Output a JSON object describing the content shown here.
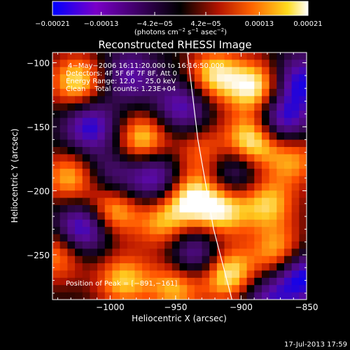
{
  "chart_data": {
    "type": "heatmap",
    "title": "Reconstructed RHESSI Image",
    "xlabel": "Heliocentric X (arcsec)",
    "ylabel": "Heliocentric Y (arcsec)",
    "xlim": [
      -1044,
      -850
    ],
    "ylim": [
      -285,
      -92
    ],
    "xticks": [
      -1000,
      -950,
      -900,
      -850
    ],
    "xtick_labels": [
      "−1000",
      "−950",
      "−900",
      "−850"
    ],
    "yticks": [
      -100,
      -150,
      -200,
      -250
    ],
    "ytick_labels": [
      "−100",
      "−150",
      "−200",
      "−250"
    ],
    "colorbar": {
      "range": [
        -0.00021,
        0.00021
      ],
      "ticks": [
        -0.00021,
        -0.00013,
        -4.2e-05,
        4.2e-05,
        0.00013,
        0.00021
      ],
      "tick_labels": [
        "−0.00021",
        "−0.00013",
        "−4.2e−05",
        "4.2e−05",
        "0.00013",
        "0.00021"
      ],
      "unit_parts": [
        "(photons cm",
        "−2",
        " s",
        "−1",
        " asec",
        "−2",
        ")"
      ],
      "colormap": [
        "#0000ff",
        "#7a00c8",
        "#000000",
        "#b41400",
        "#ff6400",
        "#ffdc1e",
        "#ffffff"
      ]
    },
    "annotations": [
      "4−May−2006 16:11:20.000 to 16:16:50.000",
      "Detectors: 4F 5F 6F 7F 8F, Att 0",
      "Energy Range: 12.0 − 25.0 keV",
      "Clean    Total counts: 1.23E+04"
    ],
    "peak_label": "Position of Peak = [−891,−161]",
    "peak": [
      -891,
      -161
    ],
    "limb_curve": [
      [
        -941,
        -92
      ],
      [
        -933,
        -160
      ],
      [
        -921,
        -230
      ],
      [
        -907,
        -285
      ]
    ],
    "grid_cols": 34,
    "grid_rows": 34,
    "hot_spots": [
      {
        "x": -1025,
        "y": -115,
        "v": 0.8
      },
      {
        "x": -1030,
        "y": -190,
        "v": 0.7
      },
      {
        "x": -1000,
        "y": -215,
        "v": 0.9
      },
      {
        "x": -975,
        "y": -160,
        "v": 0.8
      },
      {
        "x": -990,
        "y": -270,
        "v": 0.7
      },
      {
        "x": -960,
        "y": -225,
        "v": 0.6
      },
      {
        "x": -940,
        "y": -205,
        "v": 0.8
      },
      {
        "x": -950,
        "y": -275,
        "v": 0.7
      },
      {
        "x": -920,
        "y": -110,
        "v": 0.8
      },
      {
        "x": -930,
        "y": -170,
        "v": 0.5
      },
      {
        "x": -915,
        "y": -215,
        "v": 0.8
      },
      {
        "x": -910,
        "y": -265,
        "v": 0.9
      },
      {
        "x": -891,
        "y": -161,
        "v": 1.0
      },
      {
        "x": -888,
        "y": -120,
        "v": 0.9
      },
      {
        "x": -880,
        "y": -210,
        "v": 0.7
      },
      {
        "x": -870,
        "y": -250,
        "v": 0.8
      },
      {
        "x": -860,
        "y": -175,
        "v": 0.6
      },
      {
        "x": -1040,
        "y": -250,
        "v": 0.6
      }
    ],
    "cold_spots": [
      {
        "x": -1015,
        "y": -150,
        "v": -0.8
      },
      {
        "x": -1020,
        "y": -228,
        "v": -1.0
      },
      {
        "x": -965,
        "y": -190,
        "v": -0.8
      },
      {
        "x": -985,
        "y": -110,
        "v": -0.6
      },
      {
        "x": -945,
        "y": -135,
        "v": -0.7
      },
      {
        "x": -935,
        "y": -250,
        "v": -0.7
      },
      {
        "x": -905,
        "y": -185,
        "v": -0.6
      },
      {
        "x": -870,
        "y": -145,
        "v": -0.9
      },
      {
        "x": -855,
        "y": -115,
        "v": -0.8
      },
      {
        "x": -855,
        "y": -265,
        "v": -1.0
      },
      {
        "x": -880,
        "y": -285,
        "v": -0.6
      },
      {
        "x": -1000,
        "y": -190,
        "v": -0.5
      }
    ]
  },
  "footer": {
    "timestamp": "17-Jul-2013 17:59"
  }
}
